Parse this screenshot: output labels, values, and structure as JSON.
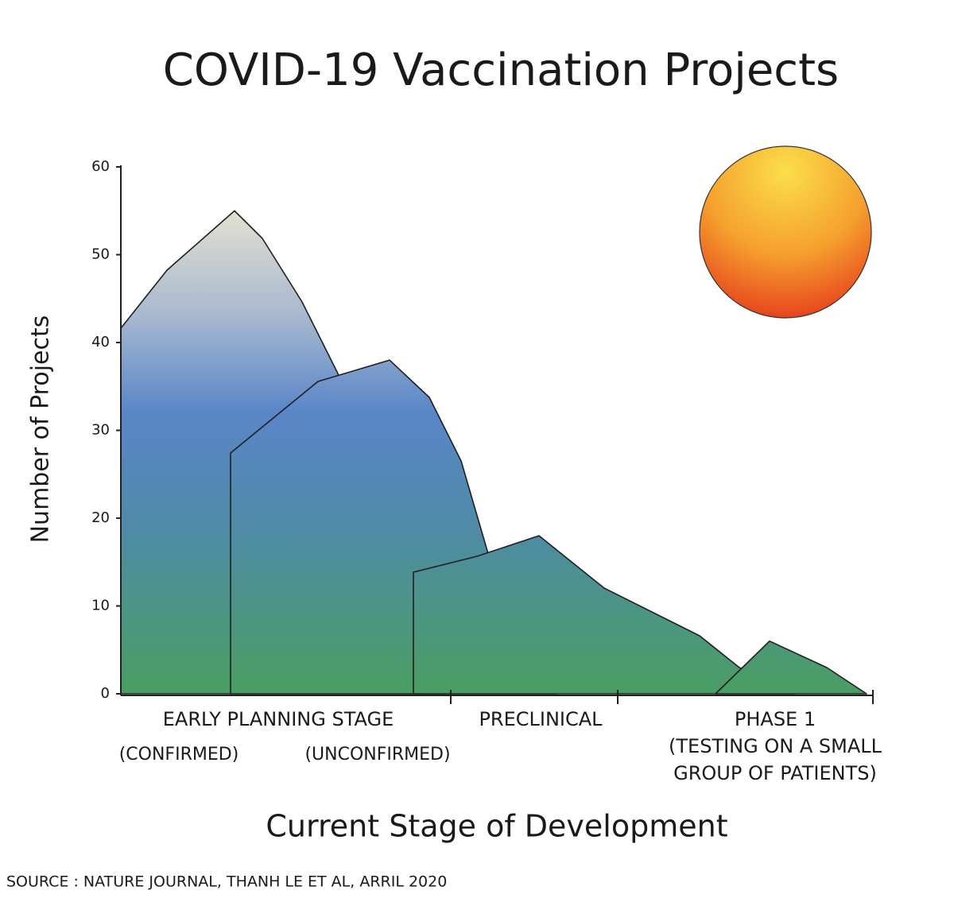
{
  "chart_data": {
    "type": "mountain",
    "title": "COVID-19 Vaccination Projects",
    "y_label": "Number of Projects",
    "x_label": "Current Stage of Development",
    "source": "SOURCE : NATURE JOURNAL, THANH LE ET AL, ARRIL 2020",
    "stages": [
      {
        "label": "EARLY PLANNING STAGE"
      },
      {
        "label": "PRECLINICAL"
      },
      {
        "label": "PHASE 1",
        "note": [
          "(TESTING ON A SMALL",
          "GROUP OF PATIENTS)"
        ]
      }
    ],
    "categories": [
      "(CONFIRMED)",
      "(UNCONFIRMED)",
      null,
      null
    ],
    "values": [
      55,
      38,
      18,
      6
    ],
    "ylim": [
      0,
      60
    ],
    "yticks": [
      0,
      10,
      20,
      30,
      40,
      50,
      60
    ]
  }
}
